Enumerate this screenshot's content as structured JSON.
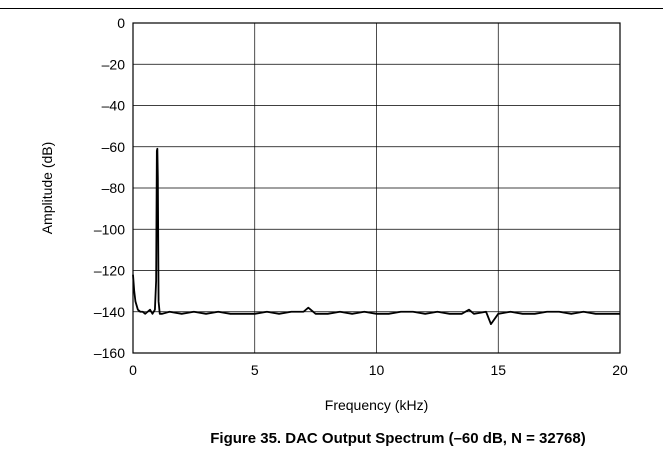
{
  "figure": {
    "caption": "Figure 35. DAC Output Spectrum (–60 dB, N = 32768)"
  },
  "chart_data": {
    "type": "line",
    "title": "",
    "xlabel": "Frequency (kHz)",
    "ylabel": "Amplitude (dB)",
    "xlim": [
      0,
      20
    ],
    "ylim": [
      -160,
      0
    ],
    "xticks": [
      0,
      5,
      10,
      15,
      20
    ],
    "xtick_labels": [
      "0",
      "5",
      "10",
      "15",
      "20"
    ],
    "yticks": [
      0,
      -20,
      -40,
      -60,
      -80,
      -100,
      -120,
      -140,
      -160
    ],
    "ytick_labels": [
      "0",
      "–20",
      "–40",
      "–60",
      "–80",
      "–100",
      "–120",
      "–140",
      "–160"
    ],
    "grid": true,
    "line_color": "#000000",
    "series": [
      {
        "x": [
          0.0,
          0.05,
          0.1,
          0.15,
          0.2,
          0.3,
          0.4,
          0.5,
          0.6,
          0.7,
          0.8,
          0.9,
          0.95,
          0.98,
          1.0,
          1.02,
          1.05,
          1.1,
          1.2,
          1.5,
          2.0,
          2.5,
          3.0,
          3.5,
          4.0,
          4.5,
          5.0,
          5.5,
          6.0,
          6.5,
          7.0,
          7.2,
          7.5,
          8.0,
          8.5,
          9.0,
          9.5,
          10.0,
          10.5,
          11.0,
          11.5,
          12.0,
          12.5,
          13.0,
          13.5,
          13.8,
          14.0,
          14.5,
          14.7,
          15.0,
          15.5,
          16.0,
          16.5,
          17.0,
          17.5,
          18.0,
          18.5,
          19.0,
          19.5,
          20.0
        ],
        "y": [
          -122,
          -130,
          -135,
          -137,
          -139,
          -140,
          -140,
          -141,
          -140,
          -139,
          -141,
          -139,
          -125,
          -62,
          -61,
          -75,
          -135,
          -141,
          -141,
          -140,
          -141,
          -140,
          -141,
          -140,
          -141,
          -141,
          -141,
          -140,
          -141,
          -140,
          -140,
          -138,
          -141,
          -141,
          -140,
          -141,
          -140,
          -141,
          -141,
          -140,
          -140,
          -141,
          -140,
          -141,
          -141,
          -139,
          -141,
          -140,
          -146,
          -141,
          -140,
          -141,
          -141,
          -140,
          -140,
          -141,
          -140,
          -141,
          -141,
          -141
        ]
      }
    ]
  }
}
